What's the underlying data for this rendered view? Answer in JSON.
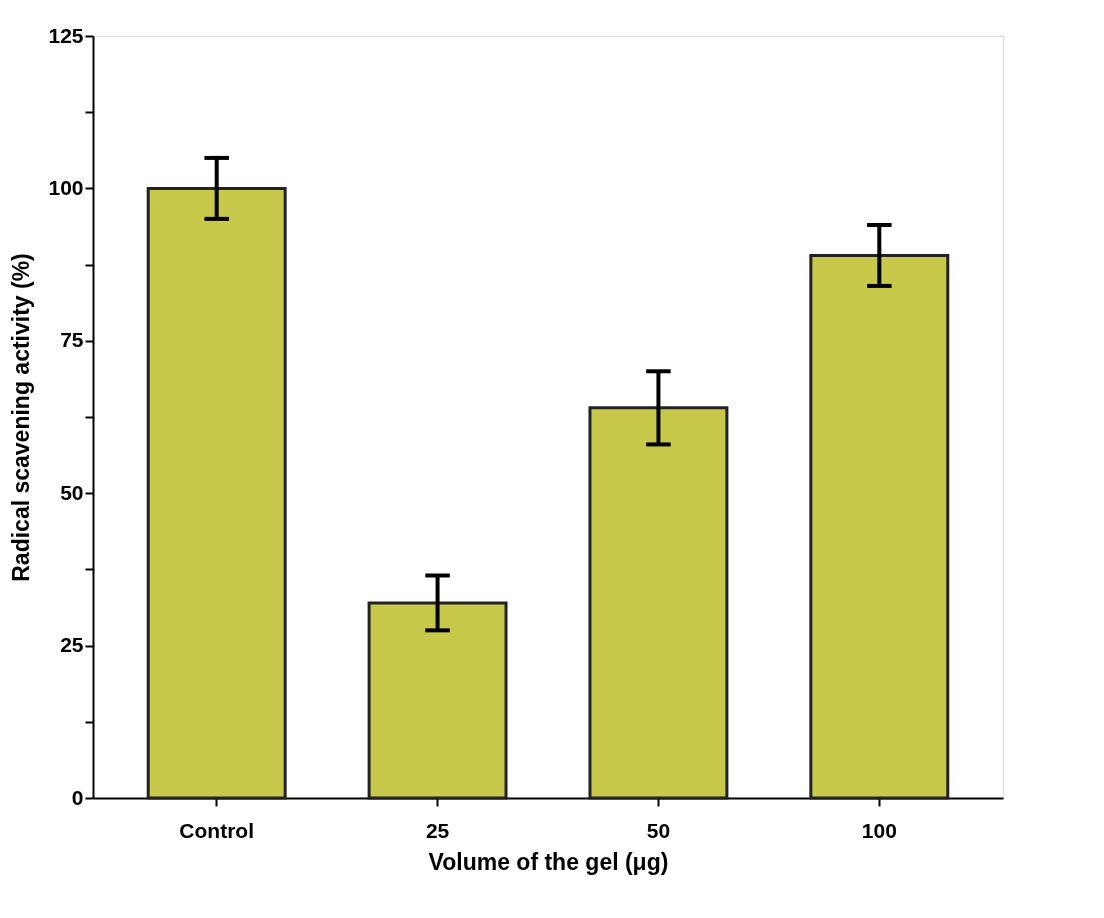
{
  "chart_data": {
    "type": "bar",
    "xlabel": "Volume of the gel (μg)",
    "ylabel": "Radical scavening activity (%)",
    "categories": [
      "Control",
      "25",
      "50",
      "100"
    ],
    "values": [
      100,
      32,
      64,
      89
    ],
    "errors": [
      5,
      4.5,
      6,
      5
    ],
    "color": "#c8c84a",
    "ylim": [
      0,
      125
    ],
    "yticks": [
      0,
      {
        "value": 12.5,
        "label": null
      },
      25,
      {
        "value": 37.5,
        "label": null
      },
      50,
      {
        "value": 62.5,
        "label": null
      },
      75,
      {
        "value": 87.5,
        "label": null
      },
      100,
      {
        "value": 112.5,
        "label": null
      },
      125
    ],
    "grid": false
  }
}
